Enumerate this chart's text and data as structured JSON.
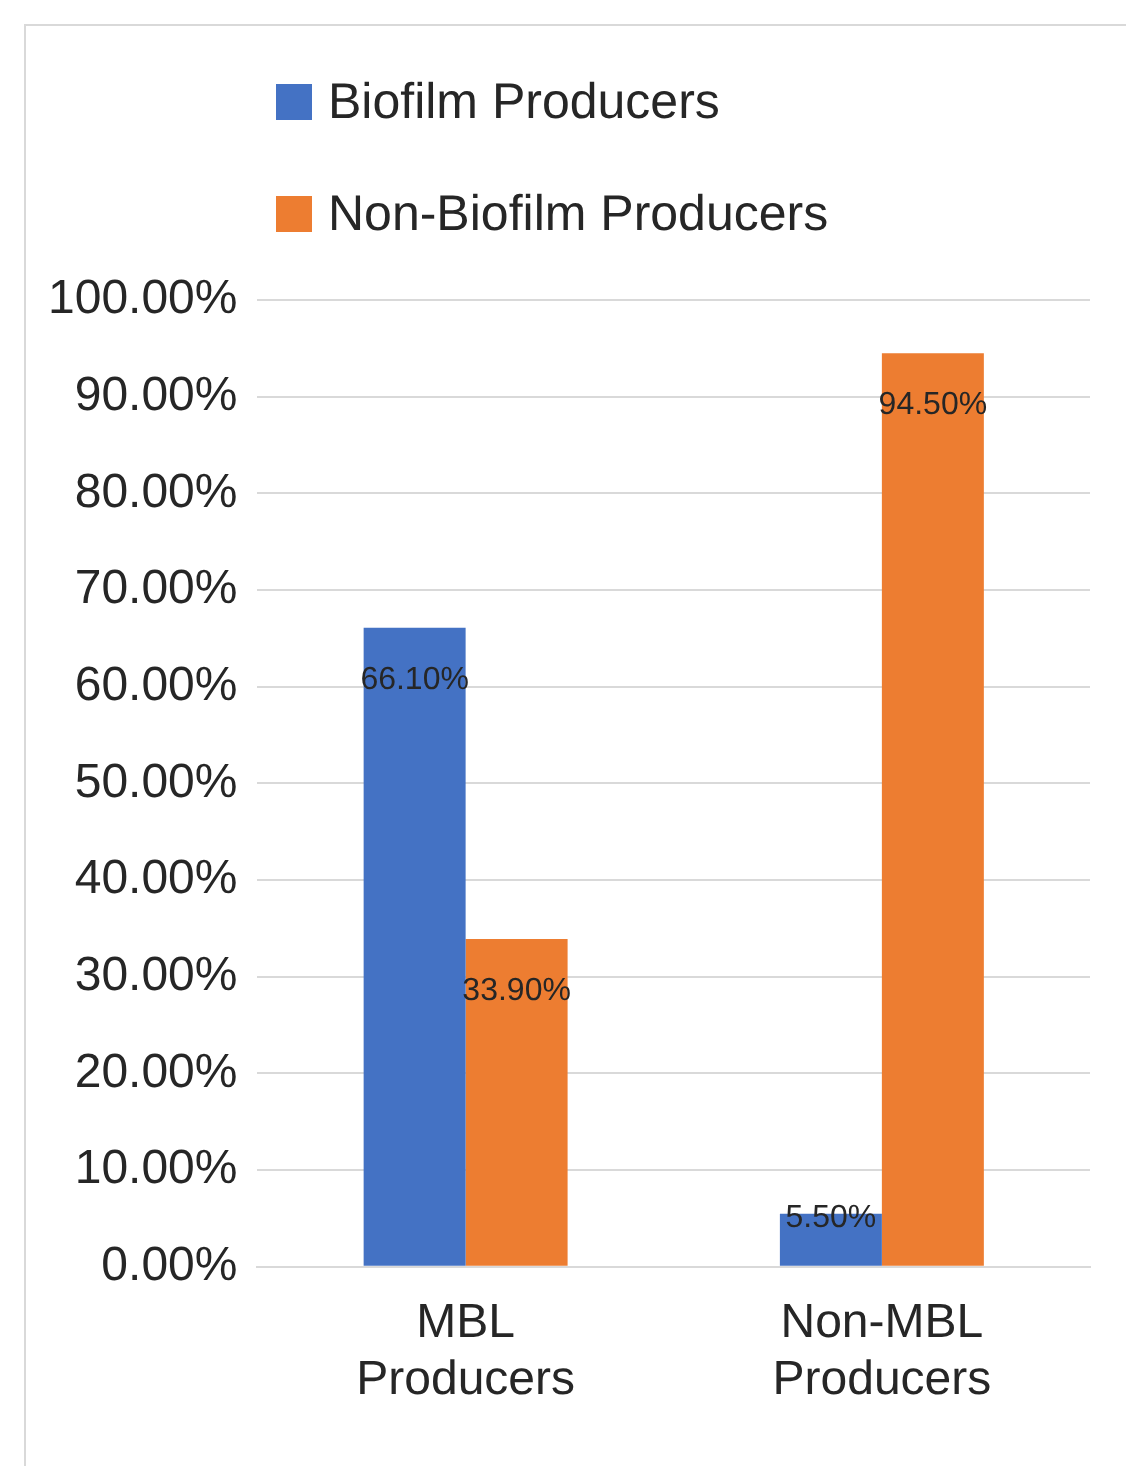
{
  "chart_data": {
    "type": "bar",
    "categories": [
      "MBL Producers",
      "Non-MBL Producers"
    ],
    "series": [
      {
        "name": "Biofilm Producers",
        "color": "#4472c4",
        "values": [
          66.1,
          5.5
        ],
        "value_labels": [
          "66.10%",
          "5.50%"
        ]
      },
      {
        "name": "Non-Biofilm Producers",
        "color": "#ed7d31",
        "values": [
          33.9,
          94.5
        ],
        "value_labels": [
          "33.90%",
          "94.50%"
        ]
      }
    ],
    "ylim": [
      0,
      100
    ],
    "yticks": [
      {
        "value": 0,
        "label": "0.00%"
      },
      {
        "value": 10,
        "label": "10.00%"
      },
      {
        "value": 20,
        "label": "20.00%"
      },
      {
        "value": 30,
        "label": "30.00%"
      },
      {
        "value": 40,
        "label": "40.00%"
      },
      {
        "value": 50,
        "label": "50.00%"
      },
      {
        "value": 60,
        "label": "60.00%"
      },
      {
        "value": 70,
        "label": "70.00%"
      },
      {
        "value": 80,
        "label": "80.00%"
      },
      {
        "value": 90,
        "label": "90.00%"
      },
      {
        "value": 100,
        "label": "100.00%"
      }
    ],
    "grid": "y",
    "legend": "top left"
  }
}
